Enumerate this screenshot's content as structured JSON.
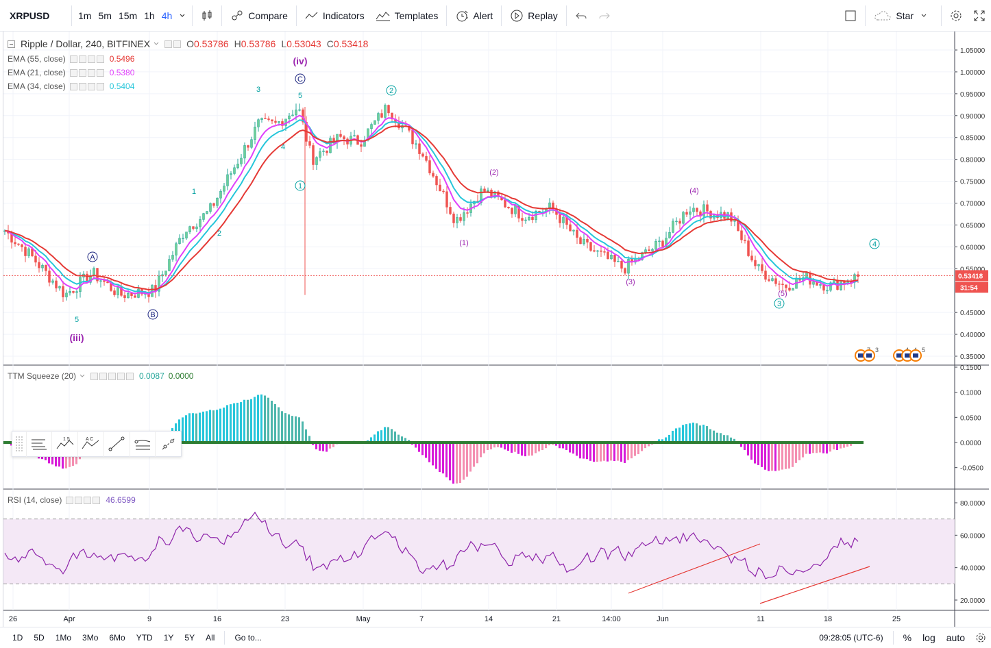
{
  "toolbar": {
    "symbol": "XRPUSD",
    "intervals": [
      "1m",
      "5m",
      "15m",
      "1h",
      "4h"
    ],
    "active_interval": "4h",
    "compare_label": "Compare",
    "indicators_label": "Indicators",
    "templates_label": "Templates",
    "alert_label": "Alert",
    "replay_label": "Replay",
    "star_label": "Star"
  },
  "main_pane": {
    "title": "Ripple / Dollar, 240, BITFINEX",
    "ohlc": {
      "o_label": "O",
      "o": "0.53786",
      "h_label": "H",
      "h": "0.53786",
      "l_label": "L",
      "l": "0.53043",
      "c_label": "C",
      "c": "0.53418"
    },
    "ema": [
      {
        "name": "EMA (55, close)",
        "value": "0.5496",
        "color": "#e53935"
      },
      {
        "name": "EMA (21, close)",
        "value": "0.5380",
        "color": "#e040fb"
      },
      {
        "name": "EMA (34, close)",
        "value": "0.5404",
        "color": "#26c6da"
      }
    ],
    "price_ticks": [
      "1.05000",
      "1.00000",
      "0.95000",
      "0.90000",
      "0.85000",
      "0.80000",
      "0.75000",
      "0.70000",
      "0.65000",
      "0.60000",
      "0.55000",
      "0.53418",
      "0.45000",
      "0.40000",
      "0.35000"
    ],
    "last_price": "0.53418",
    "countdown": "31:54",
    "wave_labels": [
      "5",
      "(iii)",
      "A",
      "B",
      "1",
      "2",
      "3",
      "4",
      "5",
      "C",
      "(iv)",
      "1",
      "2",
      "(1)",
      "(2)",
      "(3)",
      "(4)",
      "(5)",
      "3",
      "4"
    ],
    "event_badges": [
      "7",
      "3",
      "4",
      "4",
      "5"
    ]
  },
  "squeeze_pane": {
    "title": "TTM Squeeze (20)",
    "v1": "0.0087",
    "v2": "0.0000",
    "ticks": [
      "0.1500",
      "0.1000",
      "0.0500",
      "0.0000",
      "-0.0500"
    ]
  },
  "rsi_pane": {
    "title": "RSI (14, close)",
    "value": "46.6599",
    "ticks": [
      "80.0000",
      "60.0000",
      "40.0000",
      "20.0000"
    ]
  },
  "time_axis": [
    "26",
    "Apr",
    "9",
    "16",
    "23",
    "May",
    "7",
    "14",
    "21",
    "14:00",
    "Jun",
    "11",
    "18",
    "25"
  ],
  "bottombar": {
    "ranges": [
      "1D",
      "5D",
      "1Mo",
      "3Mo",
      "6Mo",
      "YTD",
      "1Y",
      "5Y",
      "All"
    ],
    "goto": "Go to...",
    "clock": "09:28:05 (UTC-6)",
    "percent": "%",
    "log": "log",
    "auto": "auto"
  },
  "chart_data": {
    "type": "line",
    "title": "Ripple / Dollar, 240, BITFINEX",
    "price_points": [
      {
        "x": "Mar 24",
        "y": 0.64
      },
      {
        "x": "Mar 28",
        "y": 0.58
      },
      {
        "x": "Mar 31",
        "y": 0.49
      },
      {
        "x": "Apr 3",
        "y": 0.54
      },
      {
        "x": "Apr 6",
        "y": 0.49
      },
      {
        "x": "Apr 9",
        "y": 0.5
      },
      {
        "x": "Apr 12",
        "y": 0.64
      },
      {
        "x": "Apr 15",
        "y": 0.68
      },
      {
        "x": "Apr 19",
        "y": 0.88
      },
      {
        "x": "Apr 21",
        "y": 0.88
      },
      {
        "x": "Apr 24",
        "y": 0.92
      },
      {
        "x": "Apr 26",
        "y": 0.8
      },
      {
        "x": "Apr 29",
        "y": 0.85
      },
      {
        "x": "May 2",
        "y": 0.84
      },
      {
        "x": "May 4",
        "y": 0.92
      },
      {
        "x": "May 8",
        "y": 0.82
      },
      {
        "x": "May 11",
        "y": 0.66
      },
      {
        "x": "May 13",
        "y": 0.73
      },
      {
        "x": "May 17",
        "y": 0.67
      },
      {
        "x": "May 21",
        "y": 0.69
      },
      {
        "x": "May 24",
        "y": 0.61
      },
      {
        "x": "May 28",
        "y": 0.55
      },
      {
        "x": "Jun 1",
        "y": 0.61
      },
      {
        "x": "Jun 4",
        "y": 0.69
      },
      {
        "x": "Jun 8",
        "y": 0.67
      },
      {
        "x": "Jun 11",
        "y": 0.55
      },
      {
        "x": "Jun 13",
        "y": 0.51
      },
      {
        "x": "Jun 16",
        "y": 0.53
      },
      {
        "x": "Jun 18",
        "y": 0.51
      },
      {
        "x": "Jun 21",
        "y": 0.534
      }
    ],
    "ylim": [
      0.34,
      1.06
    ]
  }
}
